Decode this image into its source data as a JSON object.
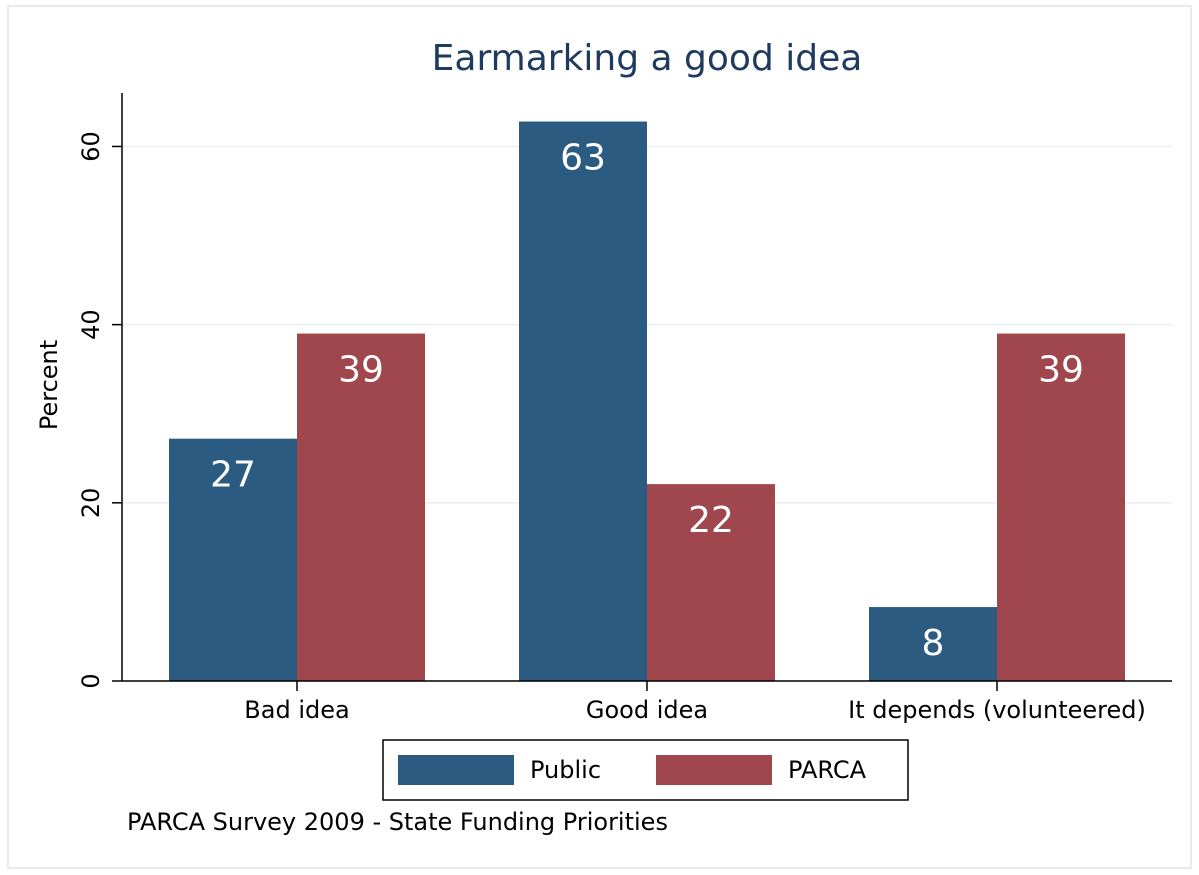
{
  "chart_data": {
    "type": "bar",
    "title": "Earmarking a good idea",
    "ylabel": "Percent",
    "note": "PARCA Survey 2009 - State Funding Priorities",
    "categories": [
      "Bad idea",
      "Good idea",
      "It depends (volunteered)"
    ],
    "series": [
      {
        "name": "Public",
        "color": "#2b5b81",
        "values": [
          27.2,
          62.8,
          8.3
        ],
        "value_labels": [
          "27",
          "63",
          "8"
        ]
      },
      {
        "name": "PARCA",
        "color": "#a0464d",
        "values": [
          39.0,
          22.1,
          39.0
        ],
        "value_labels": [
          "39",
          "22",
          "39"
        ]
      }
    ],
    "ylim": [
      0,
      66
    ],
    "yticks": [
      0,
      20,
      40,
      60
    ],
    "grid": true,
    "legend": "bottom"
  }
}
